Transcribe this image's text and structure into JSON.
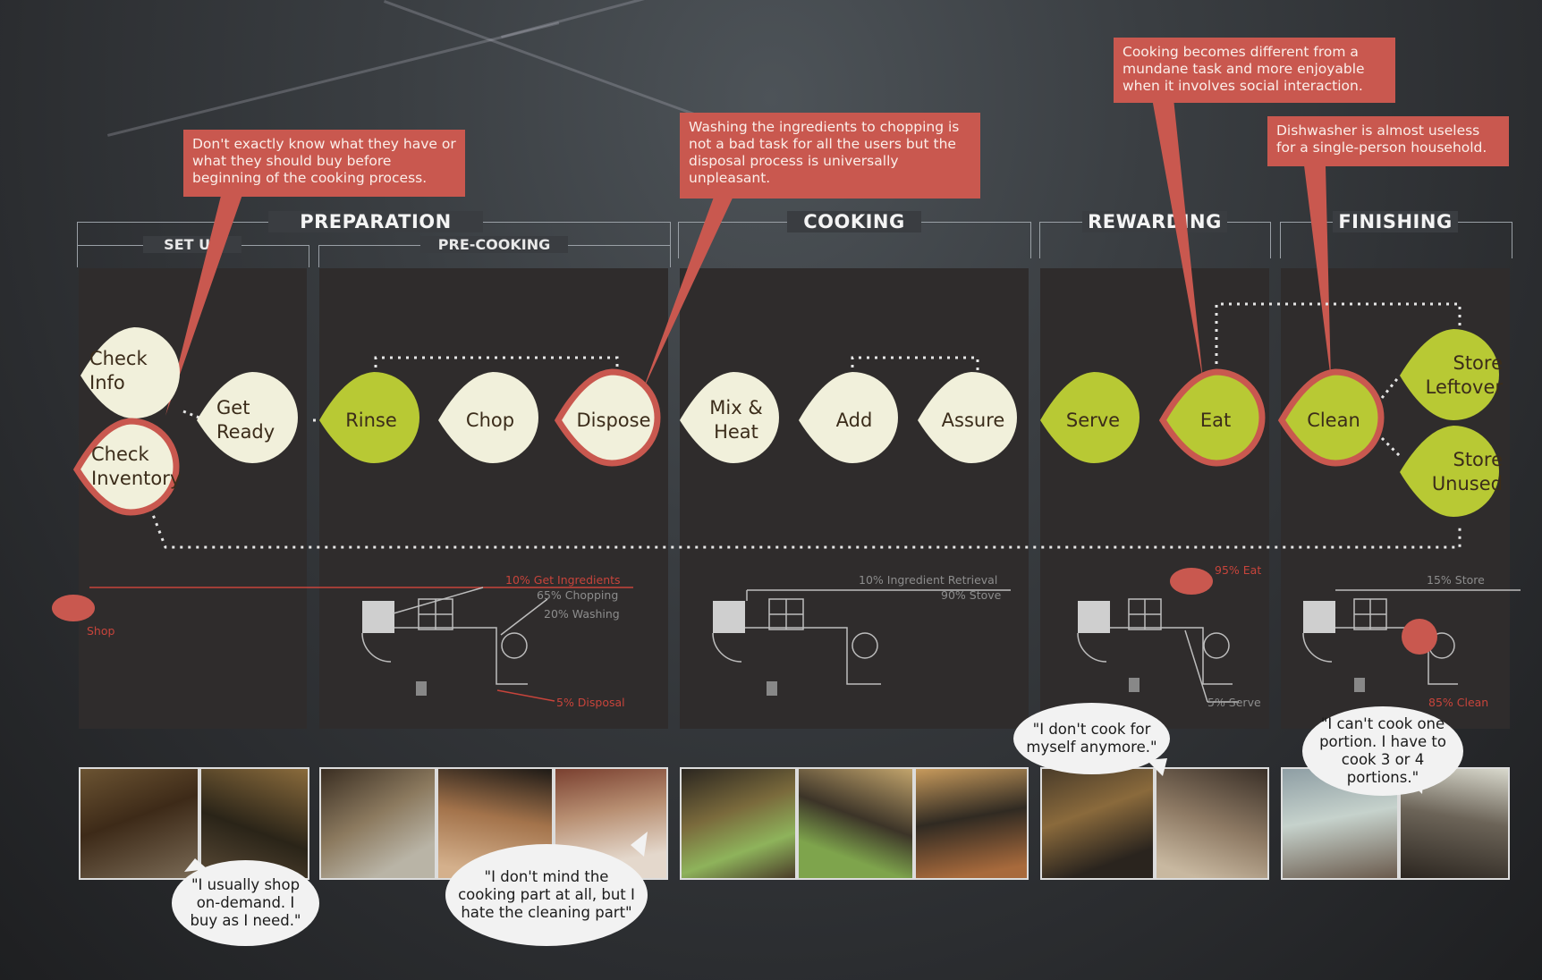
{
  "phases": {
    "preparation": "PREPARATION",
    "set_up": "SET UP",
    "pre_cooking": "PRE-COOKING",
    "cooking": "COOKING",
    "rewarding": "REWARDING",
    "finishing": "FINISHING"
  },
  "callouts": {
    "set_up": "Don't exactly know what they have or what they should buy before beginning of the cooking process.",
    "dispose": "Washing the ingredients to chopping is not a bad task for all the users but the disposal process is universally unpleasant.",
    "eat": "Cooking becomes different from a mundane task and more enjoyable when it involves social interaction.",
    "clean": "Dishwasher is almost useless for a single-person household."
  },
  "nodes": {
    "check_info": "Check Info",
    "check_inventory": "Check Inventory",
    "get_ready": "Get Ready",
    "rinse": "Rinse",
    "chop": "Chop",
    "dispose": "Dispose",
    "mix_heat": "Mix & Heat",
    "add": "Add",
    "assure": "Assure",
    "serve": "Serve",
    "eat": "Eat",
    "clean": "Clean",
    "store_leftover": "Store Leftover",
    "store_unused": "Store Unused"
  },
  "floor_labels": {
    "shop": "Shop",
    "prep_get": "10% Get Ingredients",
    "prep_chop": "65% Chopping",
    "prep_wash": "20% Washing",
    "prep_dispose": "5% Disposal",
    "cook_retrieval": "10% Ingredient Retrieval",
    "cook_stove": "90% Stove",
    "reward_eat": "95% Eat",
    "reward_serve": "5% Serve",
    "finish_store": "15% Store",
    "finish_clean": "85% Clean"
  },
  "quotes": {
    "shop": "\"I usually shop on-demand. I buy as I need.\"",
    "cleaning": "\"I don't mind the cooking part at all, but I hate the cleaning part\"",
    "cook_myself": "\"I don't cook for myself anymore.\"",
    "portions": "\"I can't cook one portion. I have to cook 3 or 4 portions.\""
  },
  "colors": {
    "callout": "#c9584f",
    "node_green": "#b8c934",
    "node_cream": "#f1f0db",
    "pain_ring": "#c9584f",
    "panel": "#2f2c2c"
  }
}
